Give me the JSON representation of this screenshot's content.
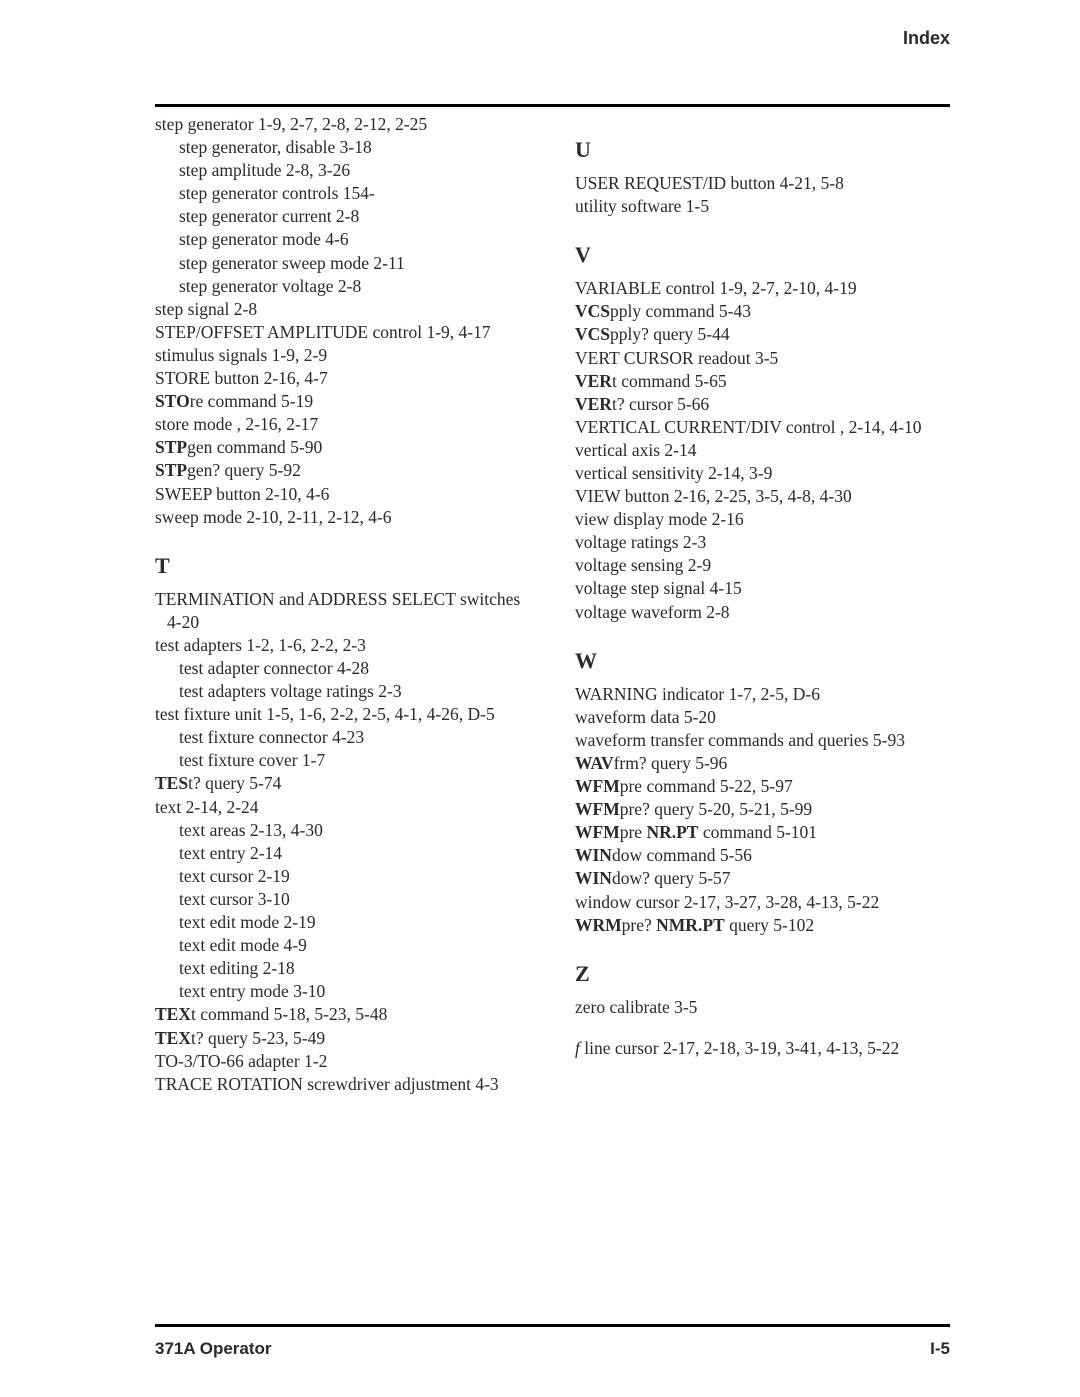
{
  "page": {
    "header_label": "Index",
    "footer_left": "371A Operator",
    "footer_right": "I-5"
  },
  "left_column": {
    "pre_entries": [
      {
        "lvl": 0,
        "html": "step generator 1-9, 2-7, 2-8, 2-12, 2-25"
      },
      {
        "lvl": 1,
        "html": "step generator, disable 3-18"
      },
      {
        "lvl": 1,
        "html": "step amplitude 2-8, 3-26"
      },
      {
        "lvl": 1,
        "html": "step generator controls 154-"
      },
      {
        "lvl": 1,
        "html": "step generator current 2-8"
      },
      {
        "lvl": 1,
        "html": "step generator mode 4-6"
      },
      {
        "lvl": 1,
        "html": "step generator sweep mode 2-11"
      },
      {
        "lvl": 1,
        "html": "step generator voltage 2-8"
      },
      {
        "lvl": 0,
        "html": "step signal 2-8"
      },
      {
        "lvl": 0,
        "html": "STEP/OFFSET AMPLITUDE control 1-9, 4-17"
      },
      {
        "lvl": 0,
        "html": "stimulus signals 1-9, 2-9"
      },
      {
        "lvl": 0,
        "html": "STORE button 2-16, 4-7"
      },
      {
        "lvl": 0,
        "html": "<b>STO</b>re command 5-19"
      },
      {
        "lvl": 0,
        "html": "store mode , 2-16, 2-17"
      },
      {
        "lvl": 0,
        "html": "<b>STP</b>gen command 5-90"
      },
      {
        "lvl": 0,
        "html": "<b>STP</b>gen? query 5-92"
      },
      {
        "lvl": 0,
        "html": "SWEEP button 2-10, 4-6"
      },
      {
        "lvl": 0,
        "html": "sweep mode 2-10, 2-11, 2-12, 4-6"
      }
    ],
    "sections": [
      {
        "letter": "T",
        "entries": [
          {
            "lvl": 0,
            "html": "TERMINATION and ADDRESS SELECT switches 4-20"
          },
          {
            "lvl": 0,
            "html": "test adapters 1-2, 1-6, 2-2, 2-3"
          },
          {
            "lvl": 1,
            "html": "test adapter connector 4-28"
          },
          {
            "lvl": 1,
            "html": "test adapters voltage ratings 2-3"
          },
          {
            "lvl": 0,
            "html": "test fixture unit 1-5, 1-6, 2-2, 2-5, 4-1, 4-26, D-5"
          },
          {
            "lvl": 1,
            "html": "test fixture connector 4-23"
          },
          {
            "lvl": 1,
            "html": "test fixture cover 1-7"
          },
          {
            "lvl": 0,
            "html": "<b>TES</b>t? query 5-74"
          },
          {
            "lvl": 0,
            "html": "text 2-14, 2-24"
          },
          {
            "lvl": 1,
            "html": "text areas 2-13, 4-30"
          },
          {
            "lvl": 1,
            "html": "text entry 2-14"
          },
          {
            "lvl": 1,
            "html": "text cursor 2-19"
          },
          {
            "lvl": 1,
            "html": "text cursor 3-10"
          },
          {
            "lvl": 1,
            "html": "text edit mode 2-19"
          },
          {
            "lvl": 1,
            "html": "text edit mode 4-9"
          },
          {
            "lvl": 1,
            "html": "text editing 2-18"
          },
          {
            "lvl": 1,
            "html": "text entry mode 3-10"
          },
          {
            "lvl": 0,
            "html": "<b>TEX</b>t command 5-18, 5-23, 5-48"
          },
          {
            "lvl": 0,
            "html": "<b>TEX</b>t? query 5-23, 5-49"
          },
          {
            "lvl": 0,
            "html": "TO-3/TO-66 adapter 1-2"
          },
          {
            "lvl": 0,
            "html": "TRACE ROTATION screwdriver adjustment 4-3"
          }
        ]
      }
    ]
  },
  "right_column": {
    "sections": [
      {
        "letter": "U",
        "entries": [
          {
            "lvl": 0,
            "html": "USER REQUEST/ID button 4-21, 5-8"
          },
          {
            "lvl": 0,
            "html": "utility software 1-5"
          }
        ]
      },
      {
        "letter": "V",
        "entries": [
          {
            "lvl": 0,
            "html": "VARIABLE control 1-9, 2-7, 2-10, 4-19"
          },
          {
            "lvl": 0,
            "html": "<b>VCS</b>pply command 5-43"
          },
          {
            "lvl": 0,
            "html": "<b>VCS</b>pply? query 5-44"
          },
          {
            "lvl": 0,
            "html": "VERT CURSOR readout 3-5"
          },
          {
            "lvl": 0,
            "html": "<b>VER</b>t command 5-65"
          },
          {
            "lvl": 0,
            "html": "<b>VER</b>t? cursor 5-66"
          },
          {
            "lvl": 0,
            "html": "VERTICAL CURRENT/DIV control , 2-14, 4-10"
          },
          {
            "lvl": 0,
            "html": "vertical axis 2-14"
          },
          {
            "lvl": 0,
            "html": "vertical sensitivity 2-14, 3-9"
          },
          {
            "lvl": 0,
            "html": "VIEW button 2-16, 2-25, 3-5, 4-8, 4-30"
          },
          {
            "lvl": 0,
            "html": "view display mode 2-16"
          },
          {
            "lvl": 0,
            "html": "voltage ratings 2-3"
          },
          {
            "lvl": 0,
            "html": "voltage sensing 2-9"
          },
          {
            "lvl": 0,
            "html": "voltage step signal 4-15"
          },
          {
            "lvl": 0,
            "html": "voltage waveform 2-8"
          }
        ]
      },
      {
        "letter": "W",
        "entries": [
          {
            "lvl": 0,
            "html": "WARNING indicator 1-7, 2-5, D-6"
          },
          {
            "lvl": 0,
            "html": "waveform data 5-20"
          },
          {
            "lvl": 0,
            "html": "waveform transfer commands and queries 5-93"
          },
          {
            "lvl": 0,
            "html": "<b>WAV</b>frm? query 5-96"
          },
          {
            "lvl": 0,
            "html": "<b>WFM</b>pre command 5-22, 5-97"
          },
          {
            "lvl": 0,
            "html": "<b>WFM</b>pre? query 5-20, 5-21, 5-99"
          },
          {
            "lvl": 0,
            "html": "<b>WFM</b>pre <b>NR.PT</b> command 5-101"
          },
          {
            "lvl": 0,
            "html": "<b>WIN</b>dow command 5-56"
          },
          {
            "lvl": 0,
            "html": "<b>WIN</b>dow? query 5-57"
          },
          {
            "lvl": 0,
            "html": "window cursor 2-17, 3-27, 3-28, 4-13, 5-22"
          },
          {
            "lvl": 0,
            "html": "<b>WRM</b>pre? <b>NMR.PT</b> query 5-102"
          }
        ]
      },
      {
        "letter": "Z",
        "entries": [
          {
            "lvl": 0,
            "html": "zero calibrate 3-5"
          }
        ],
        "trailing": [
          {
            "lvl": 0,
            "html": "<i>f</i> line cursor 2-17, 2-18, 3-19, 3-41, 4-13, 5-22"
          }
        ]
      }
    ]
  }
}
